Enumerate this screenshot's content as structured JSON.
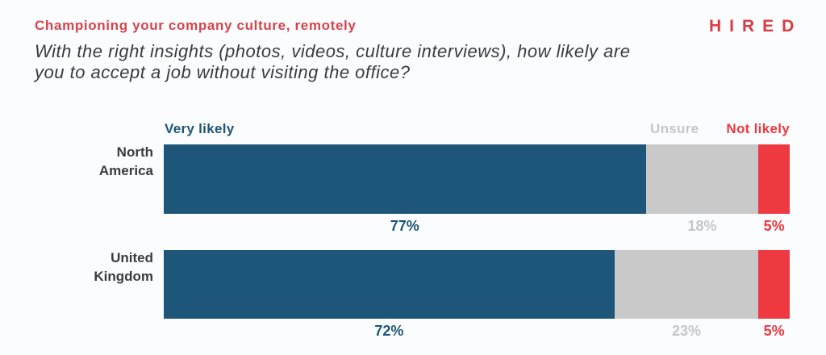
{
  "header": {
    "title": "Championing your company culture, remotely",
    "subtitle_lines": [
      "With the right insights (photos, videos, culture interviews), how likely are",
      "you to accept a job without visiting the office?"
    ],
    "logo": "HIRED"
  },
  "palette": {
    "background": "#fbfcfd",
    "title_red": "#d7434d",
    "logo_red": "#dc3b42",
    "text_dark": "#3b3b3b",
    "blue": "#1d5678",
    "gray": "#c9c9c9",
    "red": "#ee3940",
    "label_gray": "#c6c6c6"
  },
  "chart_data": {
    "type": "bar",
    "orientation": "horizontal_stacked",
    "title": "Championing your company culture, remotely",
    "question": "With the right insights (photos, videos, culture interviews), how likely are you to accept a job without visiting the office?",
    "categories": [
      "North America",
      "United Kingdom"
    ],
    "series": [
      {
        "name": "Very likely",
        "values": [
          77,
          72
        ],
        "color": "#1d5678",
        "label_color": "#1d5678"
      },
      {
        "name": "Unsure",
        "values": [
          18,
          23
        ],
        "color": "#c9c9c9",
        "label_color": "#c6c6c6"
      },
      {
        "name": "Not likely",
        "values": [
          5,
          5
        ],
        "color": "#ee3940",
        "label_color": "#ee3940"
      }
    ],
    "value_format": "percent",
    "value_labels": [
      [
        "77%",
        "18%",
        "5%"
      ],
      [
        "72%",
        "23%",
        "5%"
      ]
    ],
    "legend_position": "top",
    "axis": "none",
    "grid": false
  }
}
